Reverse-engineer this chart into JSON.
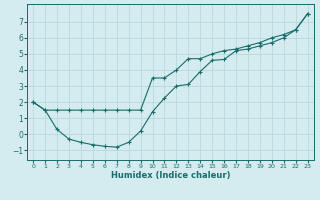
{
  "xlabel": "Humidex (Indice chaleur)",
  "background_color": "#d4ecef",
  "grid_color": "#b8d8dc",
  "line_color": "#1a6b6b",
  "xlim": [
    -0.5,
    23.5
  ],
  "ylim": [
    -1.6,
    8.1
  ],
  "xticks": [
    0,
    1,
    2,
    3,
    4,
    5,
    6,
    7,
    8,
    9,
    10,
    11,
    12,
    13,
    14,
    15,
    16,
    17,
    18,
    19,
    20,
    21,
    22,
    23
  ],
  "yticks": [
    -1,
    0,
    1,
    2,
    3,
    4,
    5,
    6,
    7
  ],
  "series1_x": [
    0,
    1,
    2,
    3,
    4,
    5,
    6,
    7,
    8,
    9,
    10,
    11,
    12,
    13,
    14,
    15,
    16,
    17,
    18,
    19,
    20,
    21,
    22,
    23
  ],
  "series1_y": [
    2.0,
    1.5,
    1.5,
    1.5,
    1.5,
    1.5,
    1.5,
    1.5,
    1.5,
    1.5,
    3.5,
    3.5,
    4.0,
    4.7,
    4.7,
    5.0,
    5.2,
    5.3,
    5.5,
    5.7,
    6.0,
    6.2,
    6.5,
    7.5
  ],
  "series2_x": [
    0,
    1,
    2,
    3,
    4,
    5,
    6,
    7,
    8,
    9,
    10,
    11,
    12,
    13,
    14,
    15,
    16,
    17,
    18,
    19,
    20,
    21,
    22,
    23
  ],
  "series2_y": [
    2.0,
    1.5,
    0.3,
    -0.3,
    -0.5,
    -0.65,
    -0.75,
    -0.8,
    -0.5,
    0.2,
    1.4,
    2.25,
    3.0,
    3.1,
    3.9,
    4.6,
    4.65,
    5.2,
    5.3,
    5.5,
    5.7,
    6.0,
    6.5,
    7.5
  ]
}
